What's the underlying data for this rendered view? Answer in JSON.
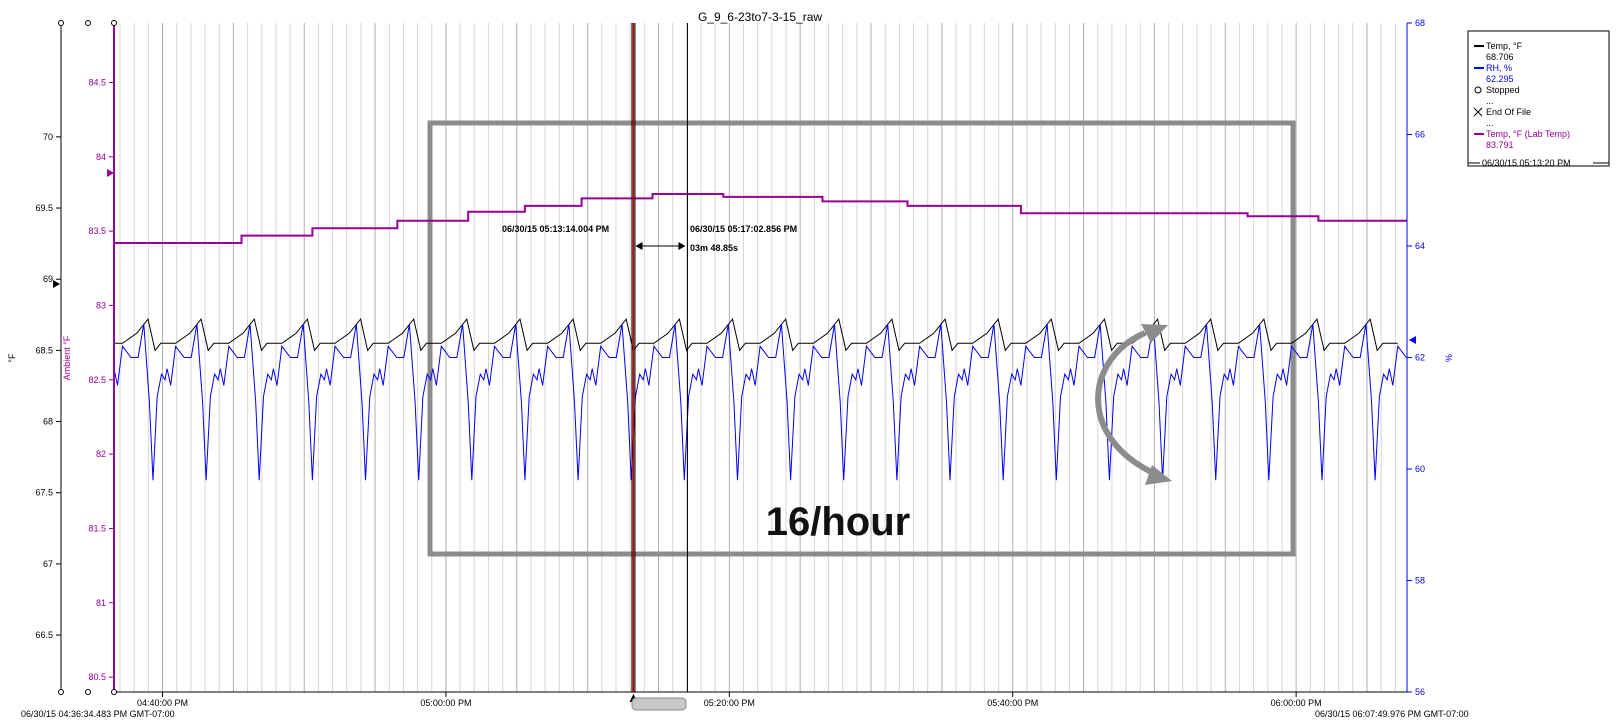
{
  "chart_data": {
    "type": "line",
    "title": "G_9_6-23to7-3-15_raw",
    "colors": {
      "temp": "#000000",
      "rh": "#0000ff",
      "lab_temp": "#990099",
      "marker": "#cc0000",
      "box": "#8c8c8c"
    },
    "axes": {
      "left1": {
        "label": "°F",
        "ylim": [
          66.1,
          70.8
        ],
        "ticks": [
          "66.5",
          "67",
          "67.5",
          "68",
          "68.5",
          "69",
          "69.5",
          "70"
        ],
        "color": "#000000"
      },
      "left2": {
        "label": "Ambient °F",
        "ylim": [
          80.4,
          84.9
        ],
        "ticks": [
          "80.5",
          "81",
          "81.5",
          "82",
          "82.5",
          "83",
          "83.5",
          "84",
          "84.5"
        ],
        "color": "#990099"
      },
      "right": {
        "label": "%",
        "ylim": [
          56,
          68
        ],
        "ticks": [
          "56",
          "58",
          "60",
          "62",
          "64",
          "66",
          "68"
        ],
        "color": "#0000ff"
      },
      "x": {
        "start_label": "06/30/15 04:36:34.483 PM GMT-07:00",
        "end_label": "06/30/15 06:07:49.976 PM GMT-07:00",
        "ticks": [
          "04:40:00 PM",
          "05:00:00 PM",
          "05:20:00 PM",
          "05:40:00 PM",
          "06:00:00 PM"
        ],
        "xlim_min": [
          0,
          91.25
        ]
      }
    },
    "series": [
      {
        "name": "Temp, °F",
        "axis": "left1",
        "pattern_min": [
          0,
          0.6,
          1.6,
          2.4,
          2.9,
          3.3,
          3.7
        ],
        "pattern_val": [
          68.55,
          68.55,
          68.62,
          68.72,
          68.5,
          68.55,
          68.55
        ],
        "period_min": 3.75
      },
      {
        "name": "RH, %",
        "axis": "right",
        "pattern_min": [
          0,
          0.25,
          0.6,
          1.2,
          1.7,
          2.1,
          2.5,
          2.75,
          3.05,
          3.35,
          3.6
        ],
        "pattern_val": [
          61.8,
          61.5,
          62.2,
          62.0,
          62.0,
          62.6,
          61.2,
          59.8,
          61.3,
          61.7,
          61.6
        ],
        "period_min": 3.75
      },
      {
        "name": "Temp, °F (Lab Temp)",
        "axis": "left2",
        "x_min": [
          0,
          9,
          14,
          20,
          25,
          29,
          33,
          38,
          43,
          50,
          56,
          60,
          64,
          72,
          80,
          85,
          91.25
        ],
        "values": [
          83.42,
          83.47,
          83.52,
          83.57,
          83.63,
          83.67,
          83.72,
          83.75,
          83.73,
          83.7,
          83.67,
          83.67,
          83.62,
          83.62,
          83.6,
          83.57,
          83.57
        ]
      }
    ],
    "legend": {
      "position": "top-right",
      "entries": [
        {
          "label": "Temp, °F",
          "value": "68.706",
          "color": "#000000",
          "marker": "line"
        },
        {
          "label": "RH, %",
          "value": "62.295",
          "color": "#0000ff",
          "marker": "line"
        },
        {
          "label": "Stopped",
          "value": "...",
          "color": "#000000",
          "marker": "circle"
        },
        {
          "label": "End Of File",
          "value": "...",
          "color": "#000000",
          "marker": "x"
        },
        {
          "label": "Temp, °F (Lab Temp)",
          "value": "83.791",
          "color": "#990099",
          "marker": "line"
        }
      ],
      "footer": "06/30/15 05:13:20 PM"
    },
    "cursors": {
      "cursor1_label": "06/30/15 05:13:14.004 PM",
      "cursor2_label": "06/30/15 05:17:02.856 PM",
      "delta_label": "03m 48.85s",
      "cursor1_min": 36.66,
      "cursor2_min": 40.47
    },
    "annotation": {
      "text": "16/hour"
    }
  }
}
